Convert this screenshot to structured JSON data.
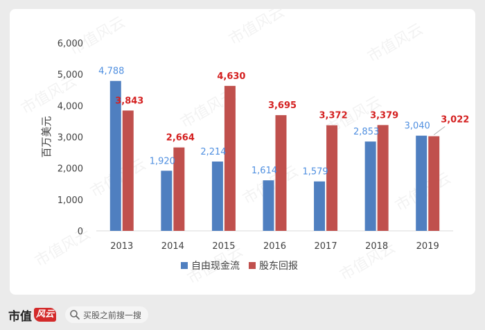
{
  "watermark_text": "市值风云",
  "footer": {
    "brand_text": "市值",
    "brand_mark_text": "风云",
    "search_placeholder": "买股之前搜一搜"
  },
  "colors": {
    "free_cash_flow": "#4f7fc0",
    "shareholder_return": "#c0504d",
    "fcf_label": "#4f8fe0",
    "sr_label": "#d42020",
    "axis_text": "#404040",
    "gridline": "#d9d9d9"
  },
  "chart_data": {
    "type": "bar",
    "categories": [
      "2013",
      "2014",
      "2015",
      "2016",
      "2017",
      "2018",
      "2019"
    ],
    "series": [
      {
        "name": "自由现金流",
        "values": [
          4788,
          1920,
          2214,
          1614,
          1579,
          2853,
          3040
        ],
        "labels": [
          "4,788",
          "1,920",
          "2,214",
          "1,614",
          "1,579",
          "2,853",
          "3,040"
        ]
      },
      {
        "name": "股东回报",
        "values": [
          3843,
          2664,
          4630,
          3695,
          3372,
          3379,
          3022
        ],
        "labels": [
          "3,843",
          "2,664",
          "4,630",
          "3,695",
          "3,372",
          "3,379",
          "3,022"
        ]
      }
    ],
    "ylabel": "百万美元",
    "ylim": [
      0,
      6000
    ],
    "yticks": [
      0,
      1000,
      2000,
      3000,
      4000,
      5000,
      6000
    ],
    "ytick_labels": [
      "0",
      "1,000",
      "2,000",
      "3,000",
      "4,000",
      "5,000",
      "6,000"
    ],
    "grid": false,
    "legend_position": "bottom"
  }
}
